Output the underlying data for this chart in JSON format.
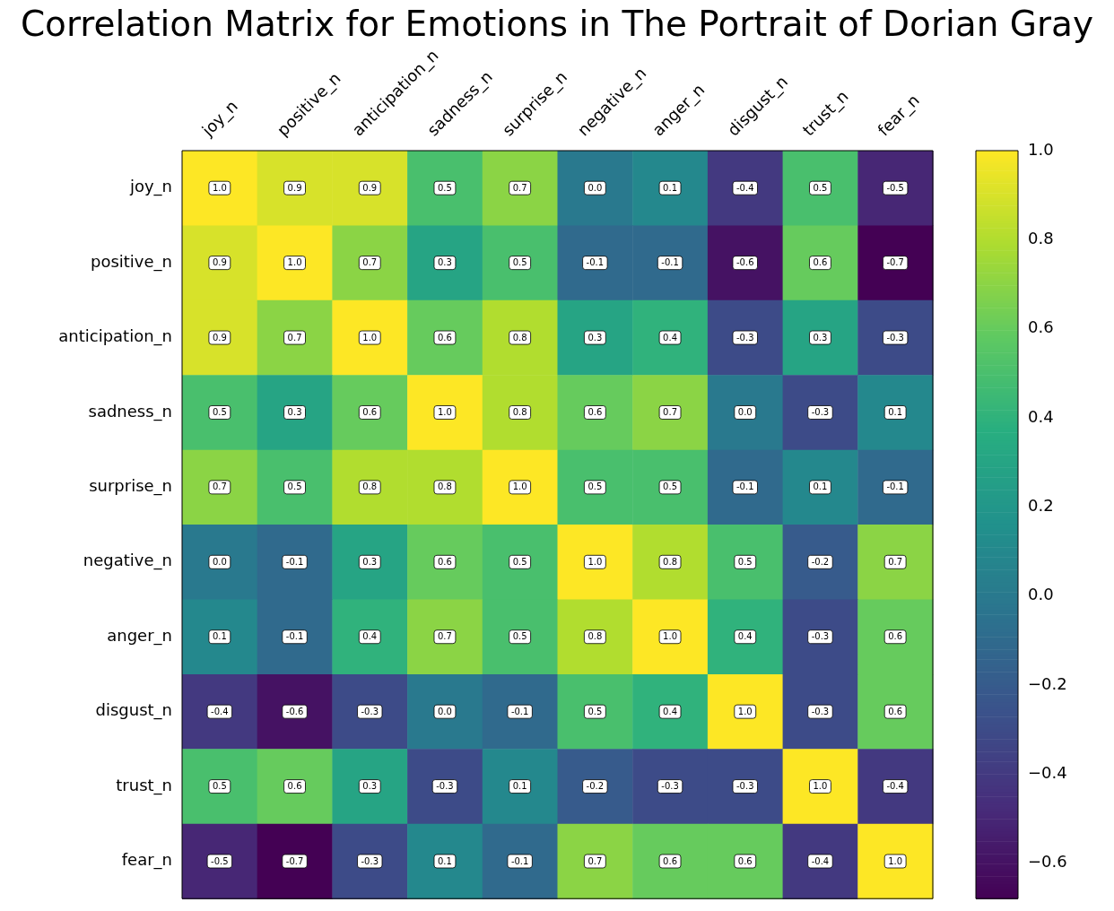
{
  "chart_data": {
    "type": "heatmap",
    "title": "Correlation Matrix for Emotions in The Portrait of Dorian Gray",
    "categories": [
      "joy_n",
      "positive_n",
      "anticipation_n",
      "sadness_n",
      "surprise_n",
      "negative_n",
      "anger_n",
      "disgust_n",
      "trust_n",
      "fear_n"
    ],
    "y_categories": [
      "joy_n",
      "positive_n",
      "anticipation_n",
      "sadness_n",
      "surprise_n",
      "negative_n",
      "anger_n",
      "disgust_n",
      "trust_n",
      "fear_n"
    ],
    "cells": [
      [
        1.0,
        0.9,
        0.9,
        0.5,
        0.7,
        0.0,
        0.1,
        -0.4,
        0.5,
        -0.5
      ],
      [
        0.9,
        1.0,
        0.7,
        0.3,
        0.5,
        -0.1,
        -0.1,
        -0.6,
        0.6,
        -0.7
      ],
      [
        0.9,
        0.7,
        1.0,
        0.6,
        0.8,
        0.3,
        0.4,
        -0.3,
        0.3,
        -0.3
      ],
      [
        0.5,
        0.3,
        0.6,
        1.0,
        0.8,
        0.6,
        0.7,
        0.0,
        -0.3,
        0.1
      ],
      [
        0.7,
        0.5,
        0.8,
        0.8,
        1.0,
        0.5,
        0.5,
        -0.1,
        0.1,
        -0.1
      ],
      [
        0.0,
        -0.1,
        0.3,
        0.6,
        0.5,
        1.0,
        0.8,
        0.5,
        -0.2,
        0.7
      ],
      [
        0.1,
        -0.1,
        0.4,
        0.7,
        0.5,
        0.8,
        1.0,
        0.4,
        -0.3,
        0.6
      ],
      [
        -0.4,
        -0.6,
        -0.3,
        0.0,
        -0.1,
        0.5,
        0.4,
        1.0,
        -0.3,
        0.6
      ],
      [
        0.5,
        0.6,
        0.3,
        -0.3,
        0.1,
        -0.2,
        -0.3,
        -0.3,
        1.0,
        -0.4
      ],
      [
        -0.5,
        -0.7,
        -0.3,
        0.1,
        -0.1,
        0.7,
        0.6,
        0.6,
        -0.4,
        1.0
      ]
    ],
    "cell_labels": [
      [
        "1.0",
        "0.9",
        "0.9",
        "0.5",
        "0.7",
        "0.0",
        "0.1",
        "-0.4",
        "0.5",
        "-0.5"
      ],
      [
        "0.9",
        "1.0",
        "0.7",
        "0.3",
        "0.5",
        "-0.1",
        "-0.1",
        "-0.6",
        "0.6",
        "-0.7"
      ],
      [
        "0.9",
        "0.7",
        "1.0",
        "0.6",
        "0.8",
        "0.3",
        "0.4",
        "-0.3",
        "0.3",
        "-0.3"
      ],
      [
        "0.5",
        "0.3",
        "0.6",
        "1.0",
        "0.8",
        "0.6",
        "0.7",
        "0.0",
        "-0.3",
        "0.1"
      ],
      [
        "0.7",
        "0.5",
        "0.8",
        "0.8",
        "1.0",
        "0.5",
        "0.5",
        "-0.1",
        "0.1",
        "-0.1"
      ],
      [
        "0.0",
        "-0.1",
        "0.3",
        "0.6",
        "0.5",
        "1.0",
        "0.8",
        "0.5",
        "-0.2",
        "0.7"
      ],
      [
        "0.1",
        "-0.1",
        "0.4",
        "0.7",
        "0.5",
        "0.8",
        "1.0",
        "0.4",
        "-0.3",
        "0.6"
      ],
      [
        "-0.4",
        "-0.6",
        "-0.3",
        "0.0",
        "-0.1",
        "0.5",
        "0.4",
        "1.0",
        "-0.3",
        "0.6"
      ],
      [
        "0.5",
        "0.6",
        "0.3",
        "-0.3",
        "0.1",
        "-0.2",
        "-0.3",
        "-0.3",
        "1.0",
        "-0.4"
      ],
      [
        "-0.5",
        "-0.7",
        "-0.3",
        "0.1",
        "-0.1",
        "0.7",
        "0.6",
        "0.6",
        "-0.4",
        "1.0"
      ]
    ],
    "clim": [
      -0.68,
      1.0
    ],
    "cticks": [
      {
        "value": -0.6,
        "label": "−0.6"
      },
      {
        "value": -0.4,
        "label": "−0.4"
      },
      {
        "value": -0.2,
        "label": "−0.2"
      },
      {
        "value": 0,
        "label": "0.0"
      },
      {
        "value": 0.2,
        "label": "0.2"
      },
      {
        "value": 0.4,
        "label": "0.4"
      },
      {
        "value": 0.6,
        "label": "0.6"
      },
      {
        "value": 0.8,
        "label": "0.8"
      },
      {
        "value": 1,
        "label": "1.0"
      }
    ]
  }
}
